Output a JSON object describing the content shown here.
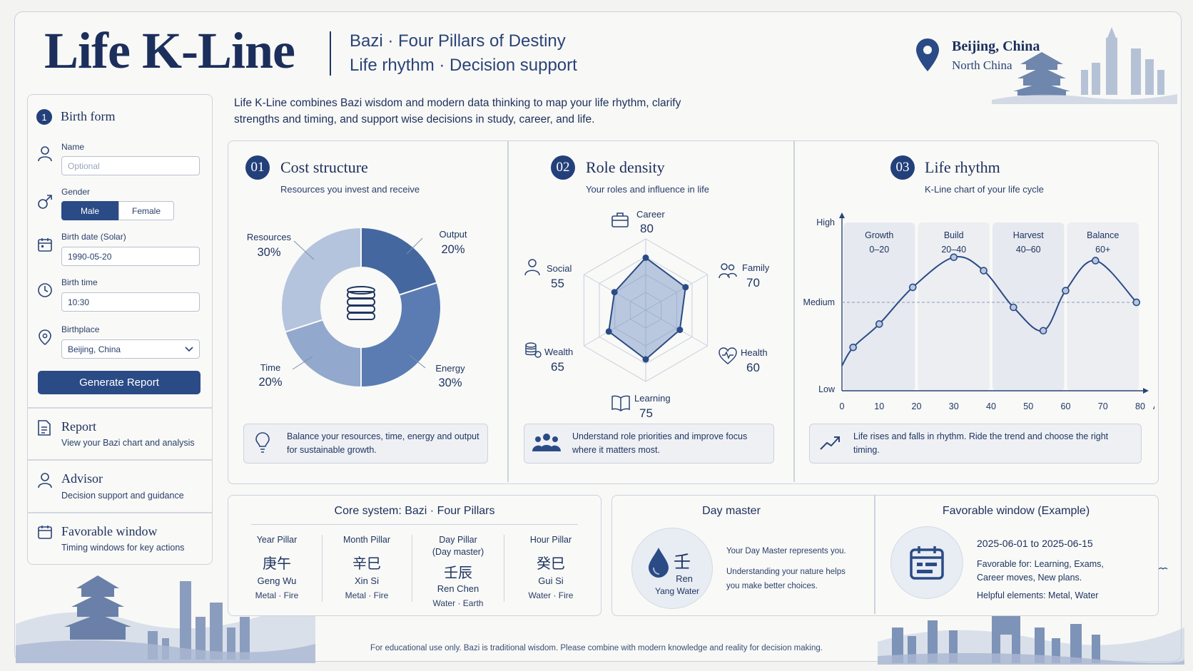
{
  "header": {
    "title": "Life K-Line",
    "subtitle_line1": "Bazi · Four Pillars of Destiny",
    "subtitle_line2": "Life rhythm · Decision support",
    "location_name": "Beijing, China",
    "location_region": "North China"
  },
  "intro": "Life K-Line combines Bazi wisdom and modern data thinking to map your life rhythm, clarify strengths and timing, and support wise decisions in study, career, and life.",
  "sidebar": {
    "step_number": "1",
    "form_title": "Birth form",
    "name_label": "Name",
    "name_placeholder": "Optional",
    "gender_label": "Gender",
    "gender_male": "Male",
    "gender_female": "Female",
    "birthdate_label": "Birth date (Solar)",
    "birthdate_value": "1990-05-20",
    "birthtime_label": "Birth time",
    "birthtime_value": "10:30",
    "birthplace_label": "Birthplace",
    "birthplace_value": "Beijing, China",
    "generate_button": "Generate Report",
    "nav": [
      {
        "title": "Report",
        "desc": "View your Bazi chart and analysis"
      },
      {
        "title": "Advisor",
        "desc": "Decision support and guidance"
      },
      {
        "title": "Favorable window",
        "desc": "Timing windows for key actions"
      }
    ]
  },
  "cost": {
    "number": "01",
    "title": "Cost structure",
    "subtitle": "Resources you invest and receive",
    "note": "Balance your resources, time, energy and output for sustainable growth."
  },
  "role": {
    "number": "02",
    "title": "Role density",
    "subtitle": "Your roles and influence in life",
    "note": "Understand role priorities and improve focus where it matters most."
  },
  "rhythm": {
    "number": "03",
    "title": "Life rhythm",
    "subtitle": "K-Line chart of your life cycle",
    "note": "Life rises and falls in rhythm. Ride the trend and choose the right timing."
  },
  "chart_data": [
    {
      "type": "pie",
      "categories": [
        "Output",
        "Energy",
        "Time",
        "Resources"
      ],
      "values": [
        20,
        30,
        20,
        30
      ],
      "labels": [
        "20%",
        "30%",
        "20%",
        "30%"
      ],
      "colors": [
        "#44679f",
        "#5b7cb2",
        "#92a8cc",
        "#b5c4dd"
      ]
    },
    {
      "type": "radar",
      "categories": [
        "Career",
        "Family",
        "Health",
        "Learning",
        "Wealth",
        "Social"
      ],
      "values": [
        80,
        70,
        60,
        75,
        65,
        55
      ]
    },
    {
      "type": "line",
      "x": [
        0,
        3,
        10,
        19,
        30,
        38,
        46,
        54,
        60,
        68,
        79
      ],
      "y": [
        0.15,
        0.26,
        0.4,
        0.62,
        0.8,
        0.72,
        0.5,
        0.36,
        0.6,
        0.78,
        0.53
      ],
      "xticks": [
        "0",
        "10",
        "20",
        "30",
        "40",
        "50",
        "60",
        "70",
        "80"
      ],
      "xlabel": "Age",
      "yticks": [
        "High",
        "Medium",
        "Low"
      ],
      "xlim": [
        0,
        80
      ],
      "phases": [
        {
          "name": "Growth",
          "range": "0–20"
        },
        {
          "name": "Build",
          "range": "20–40"
        },
        {
          "name": "Harvest",
          "range": "40–60"
        },
        {
          "name": "Balance",
          "range": "60+"
        }
      ]
    }
  ],
  "core": {
    "title": "Core system: Bazi · Four Pillars",
    "pillars": [
      {
        "label": "Year Pillar",
        "chars": "庚午",
        "pinyin": "Geng Wu",
        "elements": "Metal · Fire"
      },
      {
        "label": "Month Pillar",
        "chars": "辛巳",
        "pinyin": "Xin Si",
        "elements": "Metal · Fire"
      },
      {
        "label": "Day Pillar\n(Day master)",
        "chars": "壬辰",
        "pinyin": "Ren Chen",
        "elements": "Water · Earth"
      },
      {
        "label": "Hour Pillar",
        "chars": "癸巳",
        "pinyin": "Gui Si",
        "elements": "Water · Fire"
      }
    ]
  },
  "daymaster": {
    "title": "Day master",
    "char": "壬",
    "name": "Ren",
    "sub": "Yang Water",
    "line1": "Your Day Master represents you.",
    "line2": "Understanding your nature helps you make better choices."
  },
  "window": {
    "title": "Favorable window (Example)",
    "dates": "2025-06-01 to 2025-06-15",
    "favorable": "Favorable for: Learning, Exams, Career moves, New plans.",
    "elements": "Helpful elements: Metal, Water"
  },
  "footer": "For educational use only. Bazi is traditional wisdom. Please combine with modern knowledge and reality for decision making."
}
